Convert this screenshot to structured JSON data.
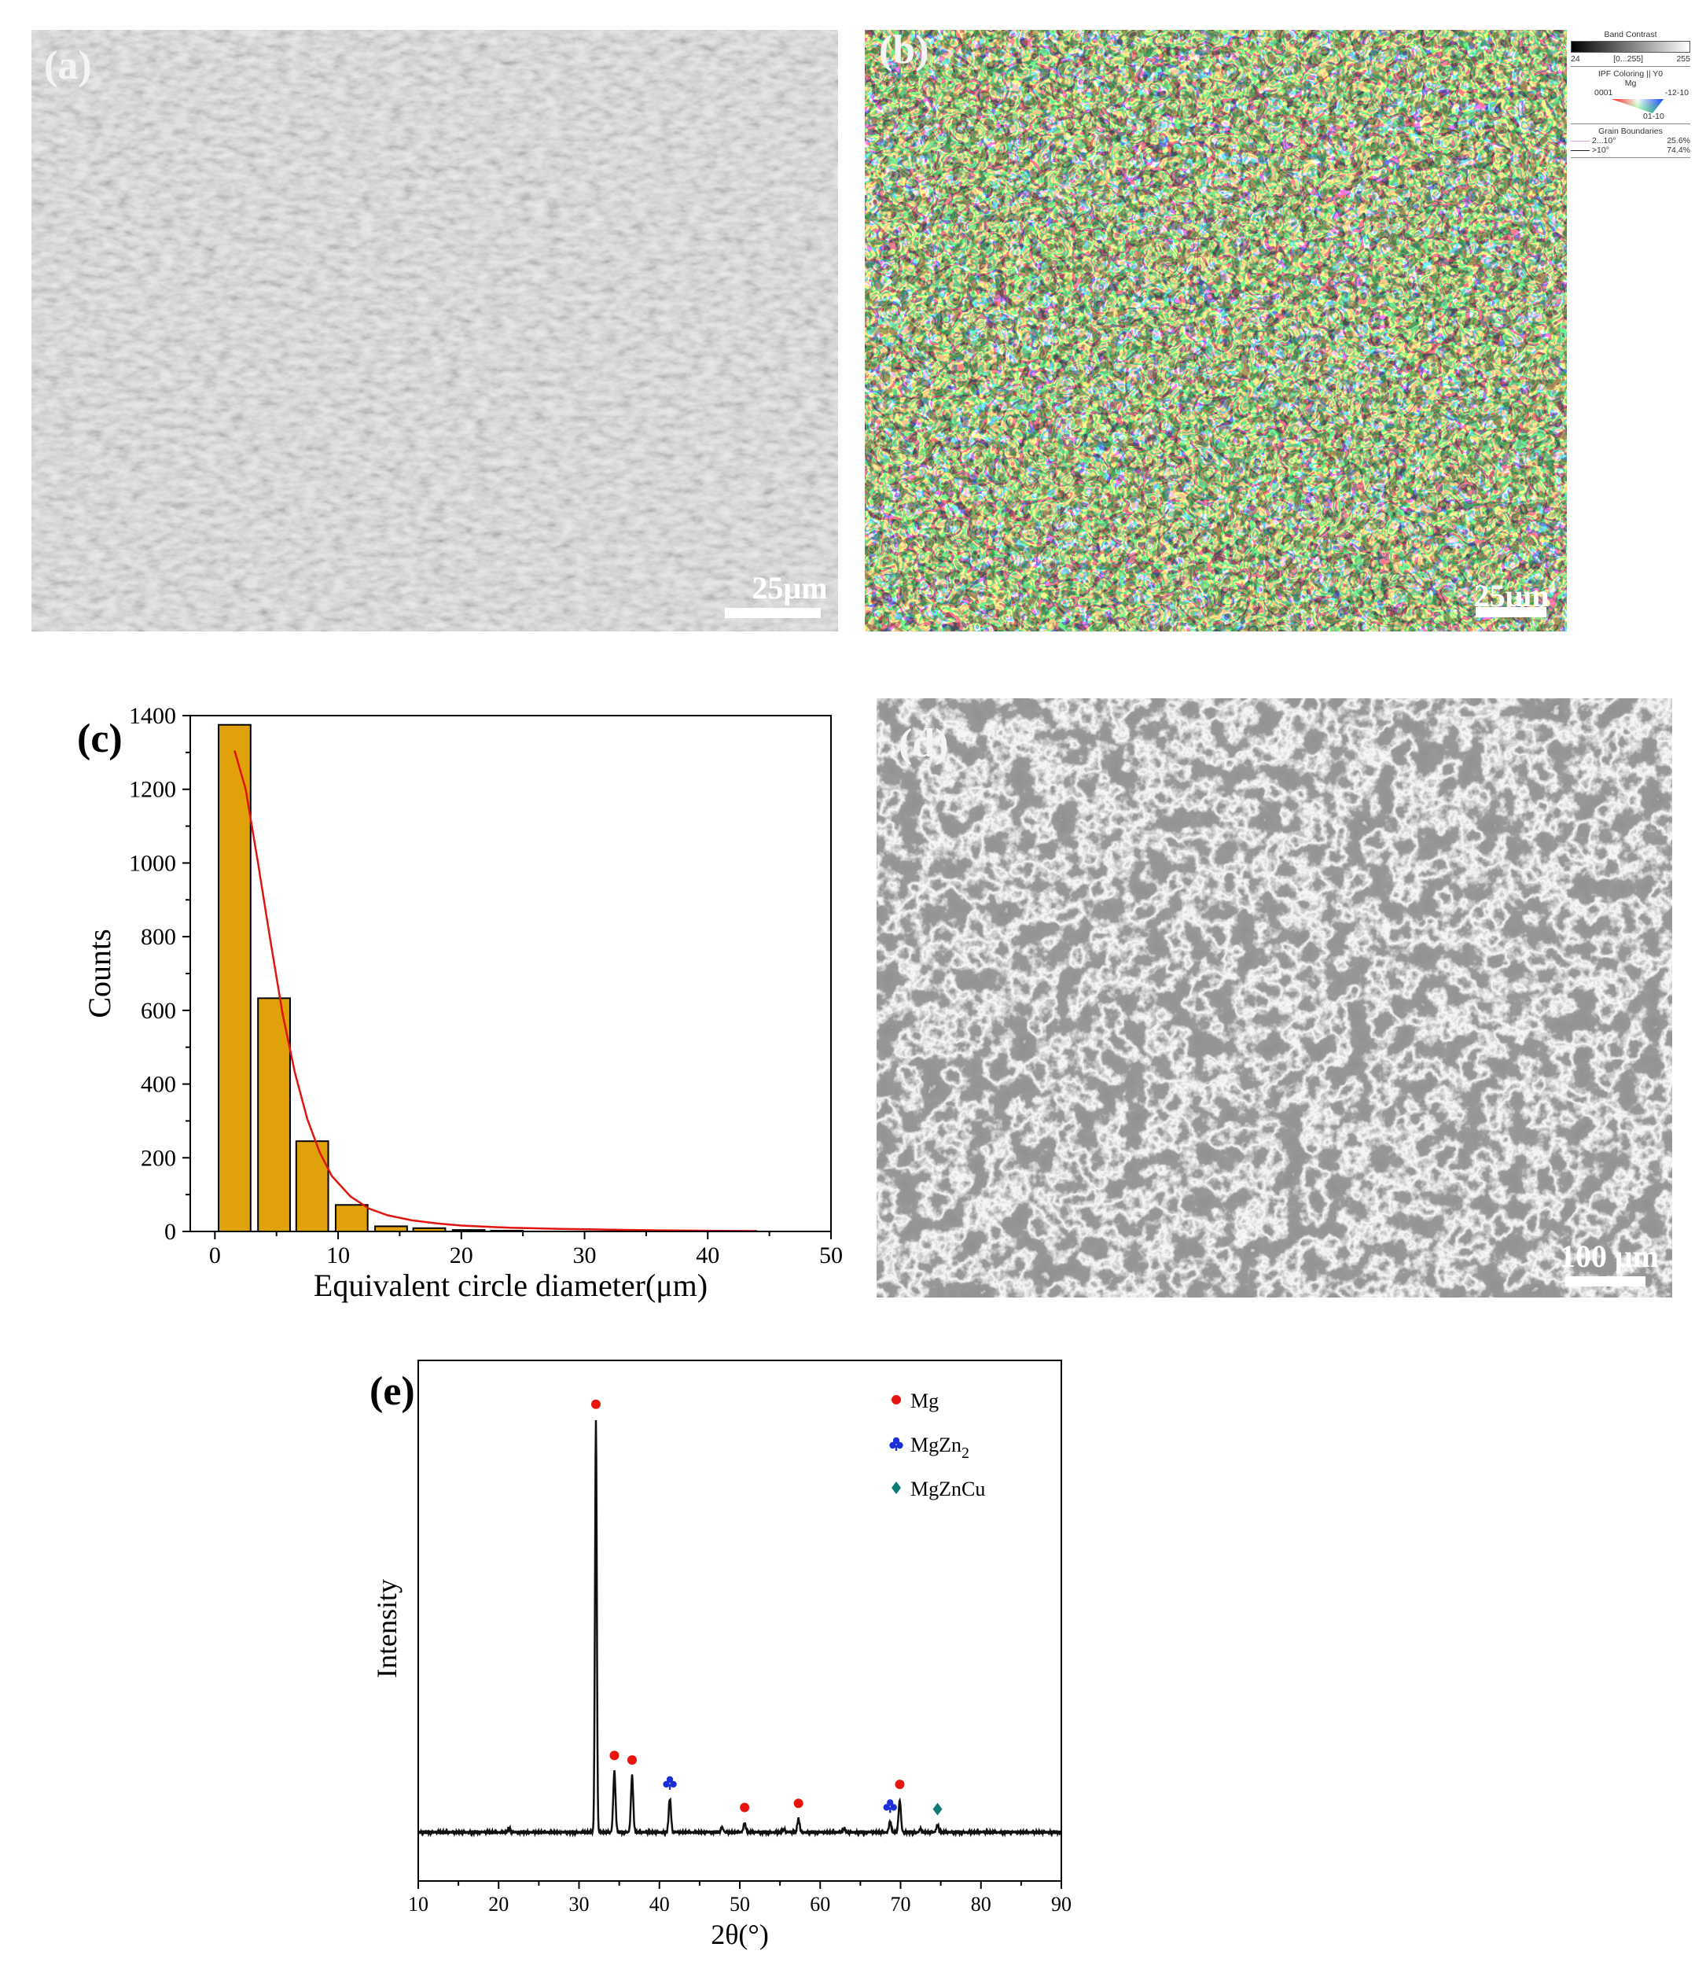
{
  "panels": {
    "a": {
      "label": "(a)",
      "scale_bar": "25μm"
    },
    "b": {
      "label": "(b)",
      "scale_bar": "25μm",
      "legend": {
        "band_contrast_title": "Band Contrast",
        "band_contrast_min": "24",
        "band_contrast_range": "[0...255]",
        "band_contrast_max": "255",
        "ipf_title": "IPF Coloring || Y0",
        "phase": "Mg",
        "ipf_corner_0001": "0001",
        "ipf_corner_1210": "-12-10",
        "ipf_corner_0110": "01-10",
        "grain_boundaries_title": "Grain Boundaries",
        "boundaries": [
          {
            "range": "2...10°",
            "fraction": "25.6%",
            "color": "#d9a2c8"
          },
          {
            "range": ">10°",
            "fraction": "74.4%",
            "color": "#222222"
          }
        ]
      }
    },
    "c": {
      "label": "(c)"
    },
    "d": {
      "label": "(d)",
      "scale_bar": "100 μm"
    },
    "e": {
      "label": "(e)"
    }
  },
  "chart_data": [
    {
      "panel": "c",
      "type": "bar",
      "xlabel": "Equivalent circle diameter(μm)",
      "ylabel": "Counts",
      "xlim": [
        -2,
        50
      ],
      "ylim": [
        0,
        1400
      ],
      "xticks": [
        0,
        10,
        20,
        30,
        40,
        50
      ],
      "yticks": [
        0,
        200,
        400,
        600,
        800,
        1000,
        1200,
        1400
      ],
      "bar_color": "#e1a10b",
      "bar_width": 2.6,
      "bars": [
        {
          "x": 1.6,
          "value": 1375
        },
        {
          "x": 4.8,
          "value": 633
        },
        {
          "x": 7.9,
          "value": 245
        },
        {
          "x": 11.1,
          "value": 72
        },
        {
          "x": 14.3,
          "value": 14
        },
        {
          "x": 17.4,
          "value": 9
        },
        {
          "x": 20.6,
          "value": 4
        },
        {
          "x": 23.7,
          "value": 2
        }
      ],
      "fit": {
        "color": "#e0140f",
        "points": [
          [
            1.6,
            1305
          ],
          [
            2.5,
            1200
          ],
          [
            3.5,
            1000
          ],
          [
            4.5,
            790
          ],
          [
            5.5,
            590
          ],
          [
            6.5,
            430
          ],
          [
            7.5,
            305
          ],
          [
            8.5,
            215
          ],
          [
            9.5,
            150
          ],
          [
            11,
            95
          ],
          [
            12.5,
            62
          ],
          [
            14,
            44
          ],
          [
            16,
            30
          ],
          [
            18,
            22
          ],
          [
            20,
            16
          ],
          [
            24,
            10
          ],
          [
            28,
            7
          ],
          [
            32,
            5
          ],
          [
            36,
            3
          ],
          [
            40,
            2
          ],
          [
            44,
            1
          ]
        ]
      }
    },
    {
      "panel": "e",
      "type": "line",
      "xlabel": "2θ(°)",
      "ylabel": "Intensity",
      "xlim": [
        10,
        90
      ],
      "xticks": [
        10,
        20,
        30,
        40,
        50,
        60,
        70,
        80,
        90
      ],
      "legend": [
        {
          "name": "Mg",
          "marker": "circle",
          "color": "#e8150e"
        },
        {
          "name": "MgZn",
          "subscript": "2",
          "marker": "club",
          "color": "#1a2fd6"
        },
        {
          "name": "MgZnCu",
          "marker": "diamond",
          "color": "#0e7a78"
        }
      ],
      "baseline": 0.03,
      "peaks": [
        {
          "x": 21.3,
          "height": 0.01,
          "marker": null
        },
        {
          "x": 32.1,
          "height": 1.0,
          "marker": "Mg"
        },
        {
          "x": 34.4,
          "height": 0.148,
          "marker": "Mg"
        },
        {
          "x": 36.6,
          "height": 0.137,
          "marker": "Mg"
        },
        {
          "x": 41.3,
          "height": 0.082,
          "marker": "MgZn2"
        },
        {
          "x": 47.8,
          "height": 0.012,
          "marker": null
        },
        {
          "x": 50.6,
          "height": 0.022,
          "marker": "Mg"
        },
        {
          "x": 55.5,
          "height": 0.007,
          "marker": null
        },
        {
          "x": 57.3,
          "height": 0.032,
          "marker": "Mg"
        },
        {
          "x": 63.0,
          "height": 0.009,
          "marker": null
        },
        {
          "x": 68.7,
          "height": 0.026,
          "marker": "MgZn2"
        },
        {
          "x": 69.9,
          "height": 0.078,
          "marker": "Mg"
        },
        {
          "x": 72.5,
          "height": 0.008,
          "marker": null
        },
        {
          "x": 74.6,
          "height": 0.018,
          "marker": "MgZnCu"
        }
      ]
    }
  ]
}
